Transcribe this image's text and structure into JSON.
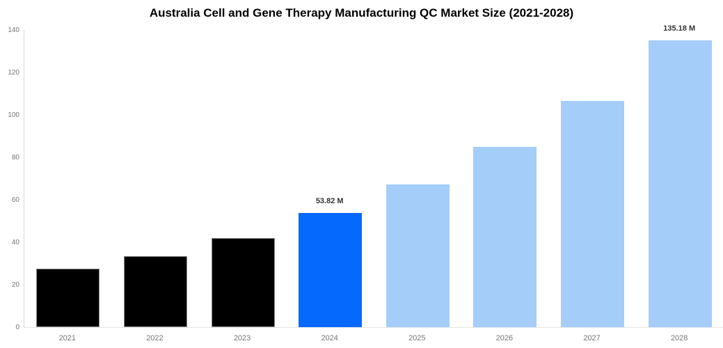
{
  "chart_data": {
    "type": "bar",
    "title": "Australia Cell and Gene Therapy Manufacturing QC Market Size (2021-2028)",
    "categories": [
      "2021",
      "2022",
      "2023",
      "2024",
      "2025",
      "2026",
      "2027",
      "2028"
    ],
    "values": [
      27.4,
      33.6,
      42.1,
      53.82,
      67.2,
      84.8,
      106.7,
      135.18
    ],
    "value_labels": [
      "",
      "",
      "",
      "53.82 M",
      "",
      "",
      "",
      "135.18 M"
    ],
    "bar_colors": [
      "#000000",
      "#000000",
      "#000000",
      "#0569FD",
      "#A4CDFA",
      "#A4CDFA",
      "#A4CDFA",
      "#A4CDFA"
    ],
    "bar_edge_colors": [
      "#8c8c8c",
      "#8c8c8c",
      "#8c8c8c",
      "none",
      "none",
      "none",
      "none",
      "none"
    ],
    "xlabel": "",
    "ylabel": "",
    "ylim": [
      0,
      140
    ],
    "yticks": [
      0,
      20,
      40,
      60,
      80,
      100,
      120,
      140
    ],
    "grid": false,
    "legend": "none",
    "colors": {
      "title": "#000000",
      "tick_label": "#757575",
      "value_label": "#333333",
      "axis_line": "#d9d9d9",
      "highlight_bar": "#0569FD",
      "forecast_bar": "#A4CDFA",
      "historical_bar": "#000000",
      "background": "#ffffff"
    }
  }
}
